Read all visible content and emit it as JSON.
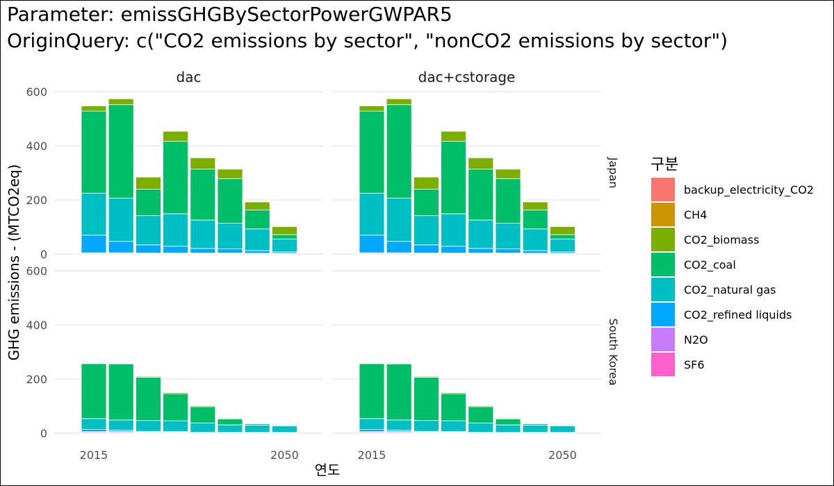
{
  "title_line1": "Parameter: emissGHGBySectorPowerGWPAR5",
  "title_line2": "OriginQuery: c(\"CO2 emissions by sector\", \"nonCO2 emissions by sector\")",
  "chart_data": {
    "type": "bar",
    "stacked": true,
    "xlabel": "연도",
    "ylabel": "GHG emissions - (MTCO2eq)",
    "ylim": [
      0,
      600
    ],
    "yticks": [
      0,
      200,
      400,
      600
    ],
    "xticks": [
      2015,
      2050
    ],
    "x": [
      2015,
      2020,
      2025,
      2030,
      2035,
      2040,
      2045,
      2050
    ],
    "facet_columns": [
      "dac",
      "dac+cstorage"
    ],
    "facet_rows": [
      "Japan",
      "South Korea"
    ],
    "legend": {
      "title": "구분",
      "position": "right",
      "entries": [
        "backup_electricity_CO2",
        "CH4",
        "CO2_biomass",
        "CO2_coal",
        "CO2_natural gas",
        "CO2_refined liquids",
        "N2O",
        "SF6"
      ]
    },
    "colors": {
      "backup_electricity_CO2": "#F8766D",
      "CH4": "#CD9600",
      "CO2_biomass": "#7CAE00",
      "CO2_coal": "#00BE67",
      "CO2_natural gas": "#00BFC4",
      "CO2_refined liquids": "#00A9FF",
      "N2O": "#C77CFF",
      "SF6": "#FF61CC"
    },
    "series_by_region": {
      "Japan": {
        "backup_electricity_CO2": [
          0,
          0,
          0,
          1,
          1,
          2,
          2,
          2
        ],
        "CH4": [
          1,
          1,
          1,
          1,
          1,
          1,
          1,
          1
        ],
        "CO2_biomass": [
          20,
          22,
          45,
          37,
          42,
          35,
          30,
          30
        ],
        "CO2_coal": [
          303,
          345,
          98,
          268,
          188,
          165,
          70,
          16
        ],
        "CO2_natural gas": [
          155,
          160,
          108,
          120,
          105,
          95,
          80,
          48
        ],
        "CO2_refined liquids": [
          65,
          42,
          30,
          25,
          17,
          15,
          10,
          5
        ],
        "N2O": [
          3,
          3,
          2,
          2,
          2,
          2,
          1,
          1
        ],
        "SF6": [
          2,
          2,
          2,
          2,
          2,
          2,
          2,
          2
        ]
      },
      "South Korea": {
        "backup_electricity_CO2": [
          0,
          0,
          0,
          0,
          1,
          1,
          1,
          1
        ],
        "CH4": [
          0,
          0,
          0,
          0,
          0,
          0,
          0,
          0
        ],
        "CO2_biomass": [
          2,
          2,
          3,
          4,
          4,
          3,
          2,
          2
        ],
        "CO2_coal": [
          203,
          207,
          160,
          100,
          60,
          22,
          5,
          3
        ],
        "CO2_natural gas": [
          40,
          38,
          40,
          40,
          35,
          28,
          27,
          24
        ],
        "CO2_refined liquids": [
          8,
          5,
          3,
          2,
          1,
          1,
          1,
          1
        ],
        "N2O": [
          3,
          3,
          2,
          2,
          1,
          1,
          1,
          1
        ],
        "SF6": [
          3,
          3,
          2,
          2,
          1,
          1,
          1,
          1
        ]
      }
    }
  }
}
